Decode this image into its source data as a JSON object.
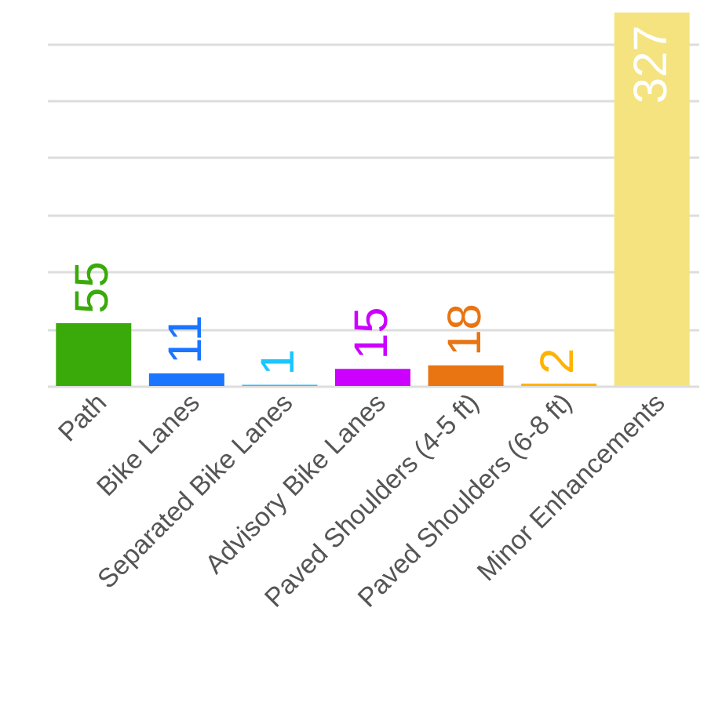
{
  "chart_data": {
    "type": "bar",
    "categories": [
      "Path",
      "Bike Lanes",
      "Separated Bike Lanes",
      "Advisory Bike Lanes",
      "Paved Shoulders (4-5 ft)",
      "Paved Shoulders (6-8 ft)",
      "Minor Enhancements"
    ],
    "values": [
      55,
      11,
      1,
      15,
      18,
      2,
      327
    ],
    "colors": [
      "#3aaa0a",
      "#1a75ff",
      "#1ac6ff",
      "#cc00ff",
      "#e87511",
      "#ffb300",
      "#f5e37f"
    ],
    "ylim": [
      0,
      327
    ],
    "grid": true,
    "tick_labels": "x",
    "data_labels": true
  }
}
